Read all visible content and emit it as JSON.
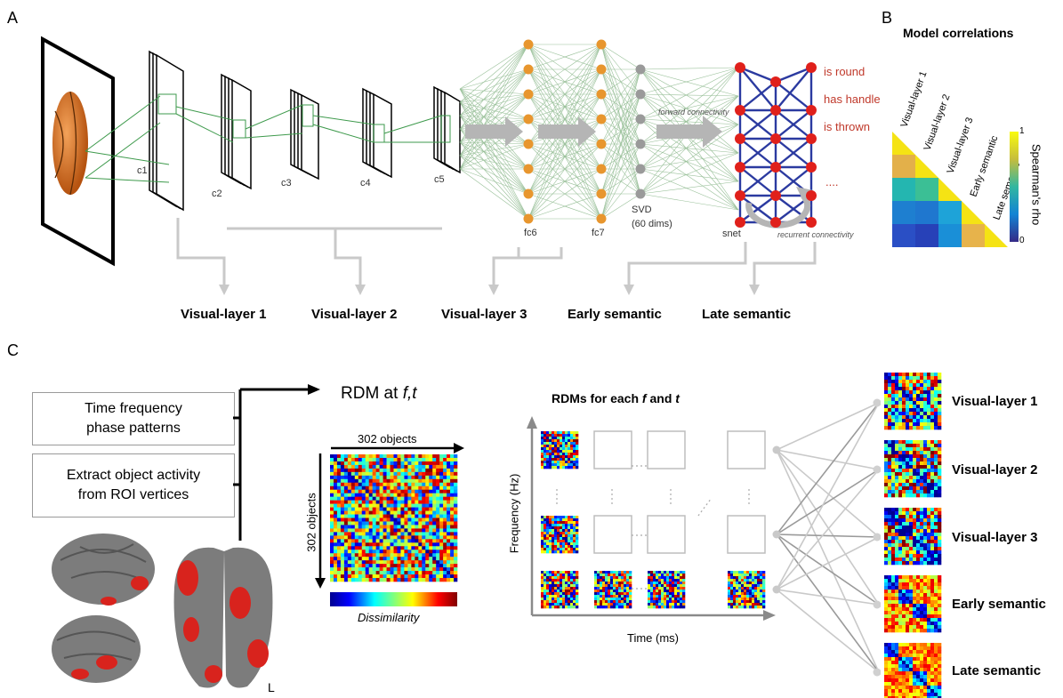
{
  "panels": {
    "a": "A",
    "b": "B",
    "c": "C"
  },
  "panel_a": {
    "conv_labels": [
      "c1",
      "c2",
      "c3",
      "c4",
      "c5"
    ],
    "fc_labels": [
      "fc6",
      "fc7"
    ],
    "svd_label_line1": "SVD",
    "svd_label_line2": "(60 dims)",
    "snet_label": "snet",
    "forward_label": "forward connectivity",
    "recurrent_label": "recurrent connectivity",
    "semantic_features": [
      "is round",
      "has handle",
      "is thrown",
      "...."
    ],
    "layer_labels": [
      "Visual-layer 1",
      "Visual-layer 2",
      "Visual-layer 3",
      "Early semantic",
      "Late semantic"
    ],
    "colors": {
      "node_orange": "#e8962e",
      "node_gray": "#9a9a9a",
      "node_red": "#e0201b",
      "edge_blue": "#2b3aa0",
      "edge_green": "#7fb07f",
      "arrow_gray": "#b5b5b5",
      "text_red": "#c0392b"
    }
  },
  "panel_b": {
    "title": "Model correlations",
    "rows": [
      "Visual-layer 1",
      "Visual-layer 2",
      "Visual-layer 3",
      "Early semantic",
      "Late semantic"
    ],
    "matrix_colors": [
      [
        "#f5e314"
      ],
      [
        "#e3b04a",
        "#f5e314"
      ],
      [
        "#24b6b0",
        "#3bbf95",
        "#f5e314"
      ],
      [
        "#1e7fd0",
        "#1f77cf",
        "#1ea3d8",
        "#f5e314"
      ],
      [
        "#2a4fc5",
        "#2741b8",
        "#1a8fd7",
        "#e7b34b",
        "#f5e314"
      ]
    ],
    "colorbar_label": "Spearman's rho",
    "colorbar_ticks": [
      "1",
      "0"
    ]
  },
  "panel_c": {
    "box1_line1": "Time frequency",
    "box1_line2": "phase patterns",
    "box2_line1": "Extract object activity",
    "box2_line2": "from ROI vertices",
    "rdm_title_prefix": "RDM at ",
    "rdm_title_vars": "f,t",
    "objects_top": "302 objects",
    "objects_side": "302 objects",
    "dissimilarity": "Dissimilarity",
    "hemisphere": "L",
    "grid_title_prefix": "RDMs for each ",
    "grid_title_f": "f",
    "grid_title_and": " and ",
    "grid_title_t": "t",
    "y_axis": "Frequency (Hz)",
    "x_axis": "Time (ms)",
    "model_labels": [
      "Visual-layer 1",
      "Visual-layer 2",
      "Visual-layer 3",
      "Early semantic",
      "Late semantic"
    ]
  }
}
